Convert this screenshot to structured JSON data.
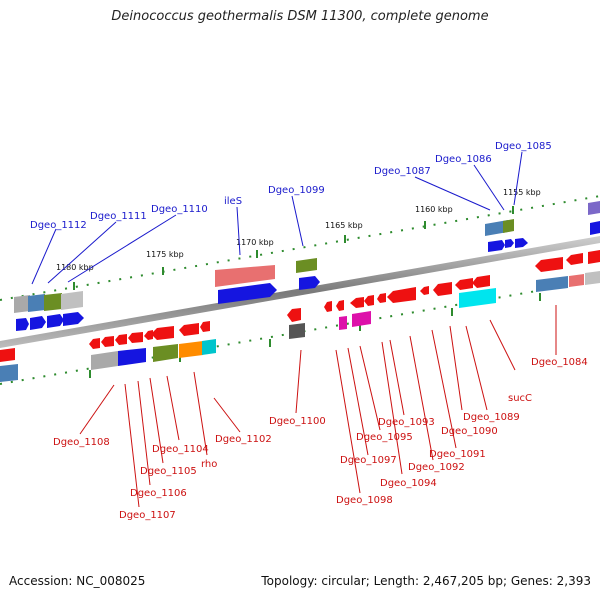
{
  "title": "Deinococcus geothermalis DSM 11300, complete genome",
  "footer": {
    "accession": "Accession: NC_008025",
    "summary": "Topology: circular; Length: 2,467,205 bp; Genes: 2,393"
  },
  "scale_labels": [
    "1155 kbp",
    "1160 kbp",
    "1165 kbp",
    "1170 kbp",
    "1175 kbp",
    "1180 kbp"
  ],
  "colors": {
    "forward_label": "#1a1acc",
    "reverse_label": "#cc1111",
    "backbone": "#888888",
    "tick": "#2e8b2e"
  },
  "forward_genes": [
    "Dgeo_1085",
    "Dgeo_1086",
    "Dgeo_1087",
    "Dgeo_1099",
    "ileS",
    "Dgeo_1110",
    "Dgeo_1111",
    "Dgeo_1112"
  ],
  "reverse_genes": [
    "Dgeo_1084",
    "sucC",
    "Dgeo_1089",
    "Dgeo_1090",
    "Dgeo_1091",
    "Dgeo_1092",
    "Dgeo_1093",
    "Dgeo_1094",
    "Dgeo_1095",
    "Dgeo_1097",
    "Dgeo_1098",
    "Dgeo_1100",
    "Dgeo_1102",
    "rho",
    "Dgeo_1104",
    "Dgeo_1105",
    "Dgeo_1106",
    "Dgeo_1107",
    "Dgeo_1108"
  ]
}
